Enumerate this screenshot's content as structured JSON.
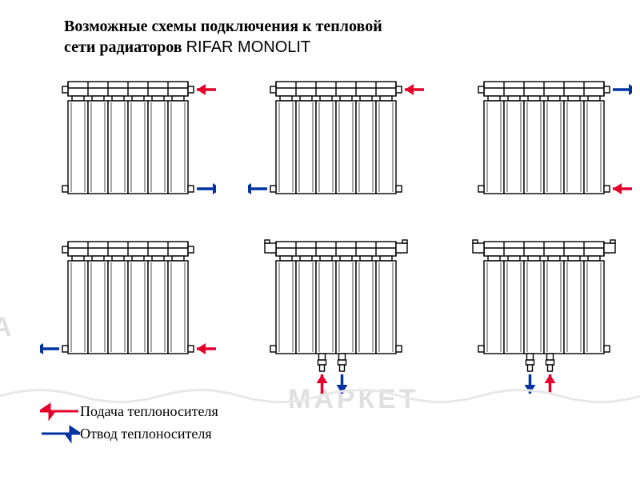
{
  "title_line1": "Возможные схемы подключения к тепловой",
  "title_line2": "сети радиаторов ",
  "title_brand": "RIFAR MONOLIT",
  "legend": {
    "supply": "Подача теплоносителя",
    "return": "Отвод теплоносителя"
  },
  "colors": {
    "supply": "#e4002b",
    "return": "#0033a0",
    "outline": "#000000",
    "watermark": "#e8e8e8",
    "background": "#ffffff"
  },
  "watermarks": {
    "wm1": "А",
    "wm2": "АКВА",
    "wm3": "МАРКЕТ"
  },
  "radiator": {
    "sections": 6,
    "stroke_width": 1.4,
    "type": "infographic"
  },
  "schemes": [
    {
      "id": 1,
      "arrows": [
        {
          "kind": "supply",
          "side": "right",
          "pos": "top",
          "dir": "in"
        },
        {
          "kind": "return",
          "side": "right",
          "pos": "bottom",
          "dir": "out"
        }
      ],
      "valves": false,
      "bottom_ports": false
    },
    {
      "id": 2,
      "arrows": [
        {
          "kind": "supply",
          "side": "right",
          "pos": "top",
          "dir": "in"
        },
        {
          "kind": "return",
          "side": "left",
          "pos": "bottom",
          "dir": "out"
        }
      ],
      "valves": false,
      "bottom_ports": false
    },
    {
      "id": 3,
      "arrows": [
        {
          "kind": "return",
          "side": "right",
          "pos": "top",
          "dir": "out"
        },
        {
          "kind": "supply",
          "side": "right",
          "pos": "bottom",
          "dir": "in"
        }
      ],
      "valves": false,
      "bottom_ports": false
    },
    {
      "id": 4,
      "arrows": [
        {
          "kind": "return",
          "side": "left",
          "pos": "bottom",
          "dir": "out"
        },
        {
          "kind": "supply",
          "side": "right",
          "pos": "bottom",
          "dir": "in"
        }
      ],
      "valves": false,
      "bottom_ports": false
    },
    {
      "id": 5,
      "arrows": [
        {
          "kind": "supply",
          "side": "bottom",
          "port": "left",
          "dir": "in"
        },
        {
          "kind": "return",
          "side": "bottom",
          "port": "right",
          "dir": "out"
        }
      ],
      "valves": true,
      "bottom_ports": true
    },
    {
      "id": 6,
      "arrows": [
        {
          "kind": "return",
          "side": "bottom",
          "port": "left",
          "dir": "out"
        },
        {
          "kind": "supply",
          "side": "bottom",
          "port": "right",
          "dir": "in"
        }
      ],
      "valves": true,
      "bottom_ports": true
    }
  ]
}
